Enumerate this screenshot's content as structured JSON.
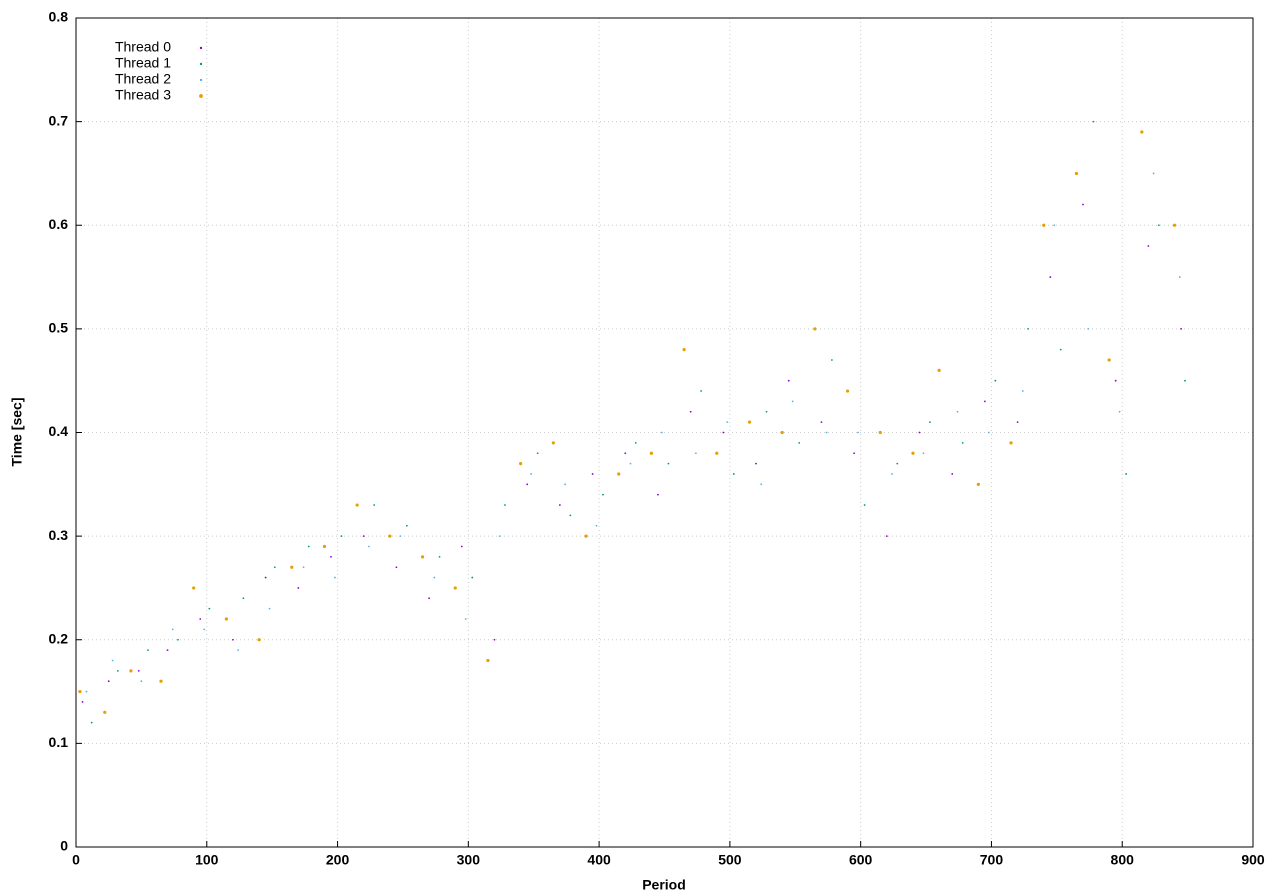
{
  "chart_data": {
    "type": "scatter",
    "xlabel": "Period",
    "ylabel": "Time [sec]",
    "xlim": [
      0,
      900
    ],
    "xticks": [
      0,
      100,
      200,
      300,
      400,
      500,
      600,
      700,
      800,
      900
    ],
    "ylim": [
      0,
      0.8
    ],
    "yticks": [
      0,
      0.1,
      0.2,
      0.3,
      0.4,
      0.5,
      0.6,
      0.7,
      0.8
    ],
    "grid": true,
    "legend": "top-left",
    "series": [
      {
        "name": "Thread 0",
        "color": "#9400d3",
        "x": [
          5,
          25,
          48,
          70,
          95,
          120,
          145,
          170,
          195,
          220,
          245,
          270,
          295,
          320,
          345,
          370,
          395,
          420,
          445,
          470,
          495,
          520,
          545,
          570,
          595,
          620,
          645,
          670,
          695,
          720,
          745,
          770,
          795,
          820,
          845
        ],
        "values": [
          0.14,
          0.16,
          0.17,
          0.19,
          0.22,
          0.2,
          0.26,
          0.25,
          0.28,
          0.3,
          0.27,
          0.24,
          0.29,
          0.2,
          0.35,
          0.33,
          0.36,
          0.38,
          0.34,
          0.42,
          0.4,
          0.37,
          0.45,
          0.41,
          0.38,
          0.3,
          0.4,
          0.36,
          0.43,
          0.41,
          0.55,
          0.62,
          0.45,
          0.58,
          0.5
        ]
      },
      {
        "name": "Thread 1",
        "color": "#009e73",
        "x": [
          12,
          32,
          55,
          78,
          102,
          128,
          152,
          178,
          203,
          228,
          253,
          278,
          303,
          328,
          353,
          378,
          403,
          428,
          453,
          478,
          503,
          528,
          553,
          578,
          603,
          628,
          653,
          678,
          703,
          728,
          753,
          778,
          803,
          828,
          848
        ],
        "values": [
          0.12,
          0.17,
          0.19,
          0.2,
          0.23,
          0.24,
          0.27,
          0.29,
          0.3,
          0.33,
          0.31,
          0.28,
          0.26,
          0.33,
          0.38,
          0.32,
          0.34,
          0.39,
          0.37,
          0.44,
          0.36,
          0.42,
          0.39,
          0.47,
          0.33,
          0.37,
          0.41,
          0.39,
          0.45,
          0.5,
          0.48,
          0.7,
          0.36,
          0.6,
          0.45
        ]
      },
      {
        "name": "Thread 2",
        "color": "#56b4e9",
        "x": [
          8,
          28,
          50,
          74,
          98,
          124,
          148,
          174,
          198,
          224,
          248,
          274,
          298,
          324,
          348,
          374,
          398,
          424,
          448,
          474,
          498,
          524,
          548,
          574,
          598,
          624,
          648,
          674,
          698,
          724,
          748,
          774,
          798,
          824,
          844
        ],
        "values": [
          0.15,
          0.18,
          0.16,
          0.21,
          0.21,
          0.19,
          0.23,
          0.27,
          0.26,
          0.29,
          0.3,
          0.26,
          0.22,
          0.3,
          0.36,
          0.35,
          0.31,
          0.37,
          0.4,
          0.38,
          0.41,
          0.35,
          0.43,
          0.4,
          0.4,
          0.36,
          0.38,
          0.42,
          0.4,
          0.44,
          0.6,
          0.5,
          0.42,
          0.65,
          0.55
        ]
      },
      {
        "name": "Thread 3",
        "color": "#e69f00",
        "x": [
          3,
          22,
          42,
          65,
          90,
          115,
          140,
          165,
          190,
          215,
          240,
          265,
          290,
          315,
          340,
          365,
          390,
          415,
          440,
          465,
          490,
          515,
          540,
          565,
          590,
          615,
          640,
          660,
          690,
          715,
          740,
          765,
          790,
          815,
          840
        ],
        "values": [
          0.15,
          0.13,
          0.17,
          0.16,
          0.25,
          0.22,
          0.2,
          0.27,
          0.29,
          0.33,
          0.3,
          0.28,
          0.25,
          0.18,
          0.37,
          0.39,
          0.3,
          0.36,
          0.38,
          0.48,
          0.38,
          0.41,
          0.4,
          0.5,
          0.44,
          0.4,
          0.38,
          0.46,
          0.35,
          0.39,
          0.6,
          0.65,
          0.47,
          0.69,
          0.6
        ]
      }
    ]
  }
}
